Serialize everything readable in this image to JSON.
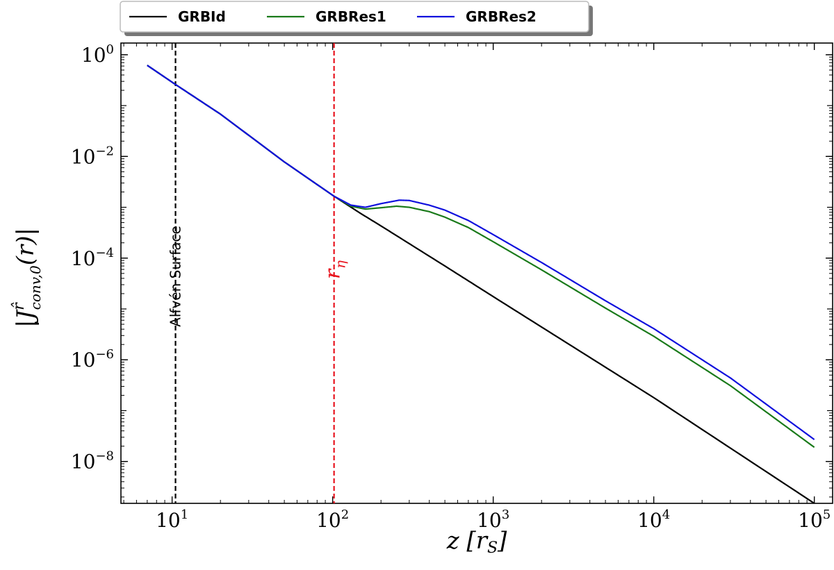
{
  "chart_data": {
    "type": "line",
    "title": "",
    "xlabel": "z [r_S]",
    "ylabel": "|J^r_conv,0(r)|",
    "xscale": "log",
    "yscale": "log",
    "xlim": [
      4.8,
      130000
    ],
    "ylim": [
      1.5e-09,
      1.7
    ],
    "xticks": [
      {
        "base": "10",
        "exp": "1",
        "value": 10
      },
      {
        "base": "10",
        "exp": "2",
        "value": 100
      },
      {
        "base": "10",
        "exp": "3",
        "value": 1000
      },
      {
        "base": "10",
        "exp": "4",
        "value": 10000
      },
      {
        "base": "10",
        "exp": "5",
        "value": 100000
      }
    ],
    "yticks": [
      {
        "base": "10",
        "exp": "0",
        "value": 1
      },
      {
        "base": "10",
        "exp": "−2",
        "value": 0.01
      },
      {
        "base": "10",
        "exp": "−4",
        "value": 0.0001
      },
      {
        "base": "10",
        "exp": "−6",
        "value": 1e-06
      },
      {
        "base": "10",
        "exp": "−8",
        "value": 1e-08
      }
    ],
    "legend_position": "top-center-outside",
    "legend": [
      "GRBId",
      "GRBRes1",
      "GRBRes2"
    ],
    "series": [
      {
        "name": "GRBId",
        "color": "#000000",
        "points": [
          [
            7,
            0.62
          ],
          [
            10.5,
            0.26
          ],
          [
            20,
            0.068
          ],
          [
            50,
            0.0078
          ],
          [
            102,
            0.00165
          ],
          [
            150,
            0.00075
          ],
          [
            200,
            0.00043
          ],
          [
            500,
            7e-05
          ],
          [
            1000,
            1.75e-05
          ],
          [
            10000,
            1.8e-07
          ],
          [
            100000,
            1.5e-09
          ]
        ]
      },
      {
        "name": "GRBRes1",
        "color": "#1a7a1a",
        "points": [
          [
            7,
            0.62
          ],
          [
            10.5,
            0.26
          ],
          [
            20,
            0.068
          ],
          [
            50,
            0.0078
          ],
          [
            102,
            0.00165
          ],
          [
            130,
            0.00105
          ],
          [
            160,
            0.00092
          ],
          [
            200,
            0.00098
          ],
          [
            250,
            0.00105
          ],
          [
            300,
            0.001
          ],
          [
            400,
            0.00082
          ],
          [
            500,
            0.00064
          ],
          [
            700,
            0.0004
          ],
          [
            1000,
            0.00021
          ],
          [
            2000,
            5.88e-05
          ],
          [
            5000,
            1.04e-05
          ],
          [
            10000,
            2.9e-06
          ],
          [
            30000,
            3.1e-07
          ],
          [
            100000,
            1.9e-08
          ]
        ]
      },
      {
        "name": "GRBRes2",
        "color": "#1010dd",
        "points": [
          [
            7,
            0.62
          ],
          [
            10.5,
            0.26
          ],
          [
            20,
            0.068
          ],
          [
            50,
            0.0078
          ],
          [
            102,
            0.00165
          ],
          [
            130,
            0.0011
          ],
          [
            160,
            0.001
          ],
          [
            200,
            0.00118
          ],
          [
            260,
            0.00138
          ],
          [
            300,
            0.00136
          ],
          [
            400,
            0.0011
          ],
          [
            500,
            0.00088
          ],
          [
            700,
            0.00055
          ],
          [
            1000,
            0.00029
          ],
          [
            2000,
            8.2e-05
          ],
          [
            5000,
            1.45e-05
          ],
          [
            10000,
            4.1e-06
          ],
          [
            30000,
            4.4e-07
          ],
          [
            100000,
            2.7e-08
          ]
        ]
      }
    ],
    "vlines": [
      {
        "x": 10.5,
        "color": "#000000",
        "label": "Alfvén Surface"
      },
      {
        "x": 102,
        "color": "#e8141e",
        "label": "r_η"
      }
    ]
  }
}
